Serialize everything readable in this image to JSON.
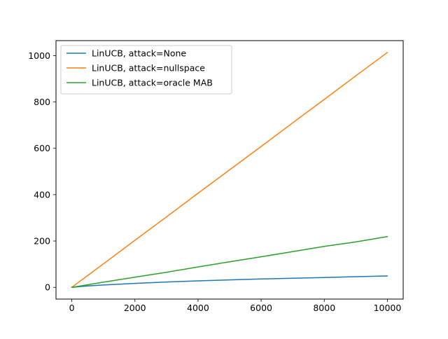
{
  "chart_data": {
    "type": "line",
    "title": "",
    "xlabel": "",
    "ylabel": "",
    "xlim": [
      -500,
      10500
    ],
    "ylim": [
      -50.7,
      1064.7
    ],
    "x_ticks": [
      0,
      2000,
      4000,
      6000,
      8000,
      10000
    ],
    "x_tick_labels": [
      "0",
      "2000",
      "4000",
      "6000",
      "8000",
      "10000"
    ],
    "y_ticks": [
      0,
      200,
      400,
      600,
      800,
      1000
    ],
    "y_tick_labels": [
      "0",
      "200",
      "400",
      "600",
      "800",
      "1000"
    ],
    "grid": false,
    "legend_position": "top-left",
    "series": [
      {
        "name": "LinUCB, attack=None",
        "color": "#1f77b4",
        "x": [
          0,
          500,
          1000,
          2000,
          3000,
          4000,
          5000,
          6000,
          7000,
          8000,
          9000,
          10000
        ],
        "y": [
          0,
          6,
          10,
          17,
          23,
          28,
          32,
          36,
          39,
          42,
          46,
          49
        ]
      },
      {
        "name": "LinUCB, attack=nullspace",
        "color": "#ff7f0e",
        "x": [
          0,
          1000,
          2000,
          3000,
          4000,
          5000,
          6000,
          7000,
          8000,
          9000,
          10000
        ],
        "y": [
          0,
          101,
          203,
          304,
          406,
          507,
          608,
          710,
          811,
          913,
          1014
        ]
      },
      {
        "name": "LinUCB, attack=oracle MAB",
        "color": "#2ca02c",
        "x": [
          0,
          1000,
          2000,
          3000,
          4000,
          5000,
          6000,
          7000,
          8000,
          9000,
          10000
        ],
        "y": [
          0,
          22,
          44,
          65,
          88,
          110,
          132,
          154,
          177,
          196,
          219
        ]
      }
    ]
  }
}
